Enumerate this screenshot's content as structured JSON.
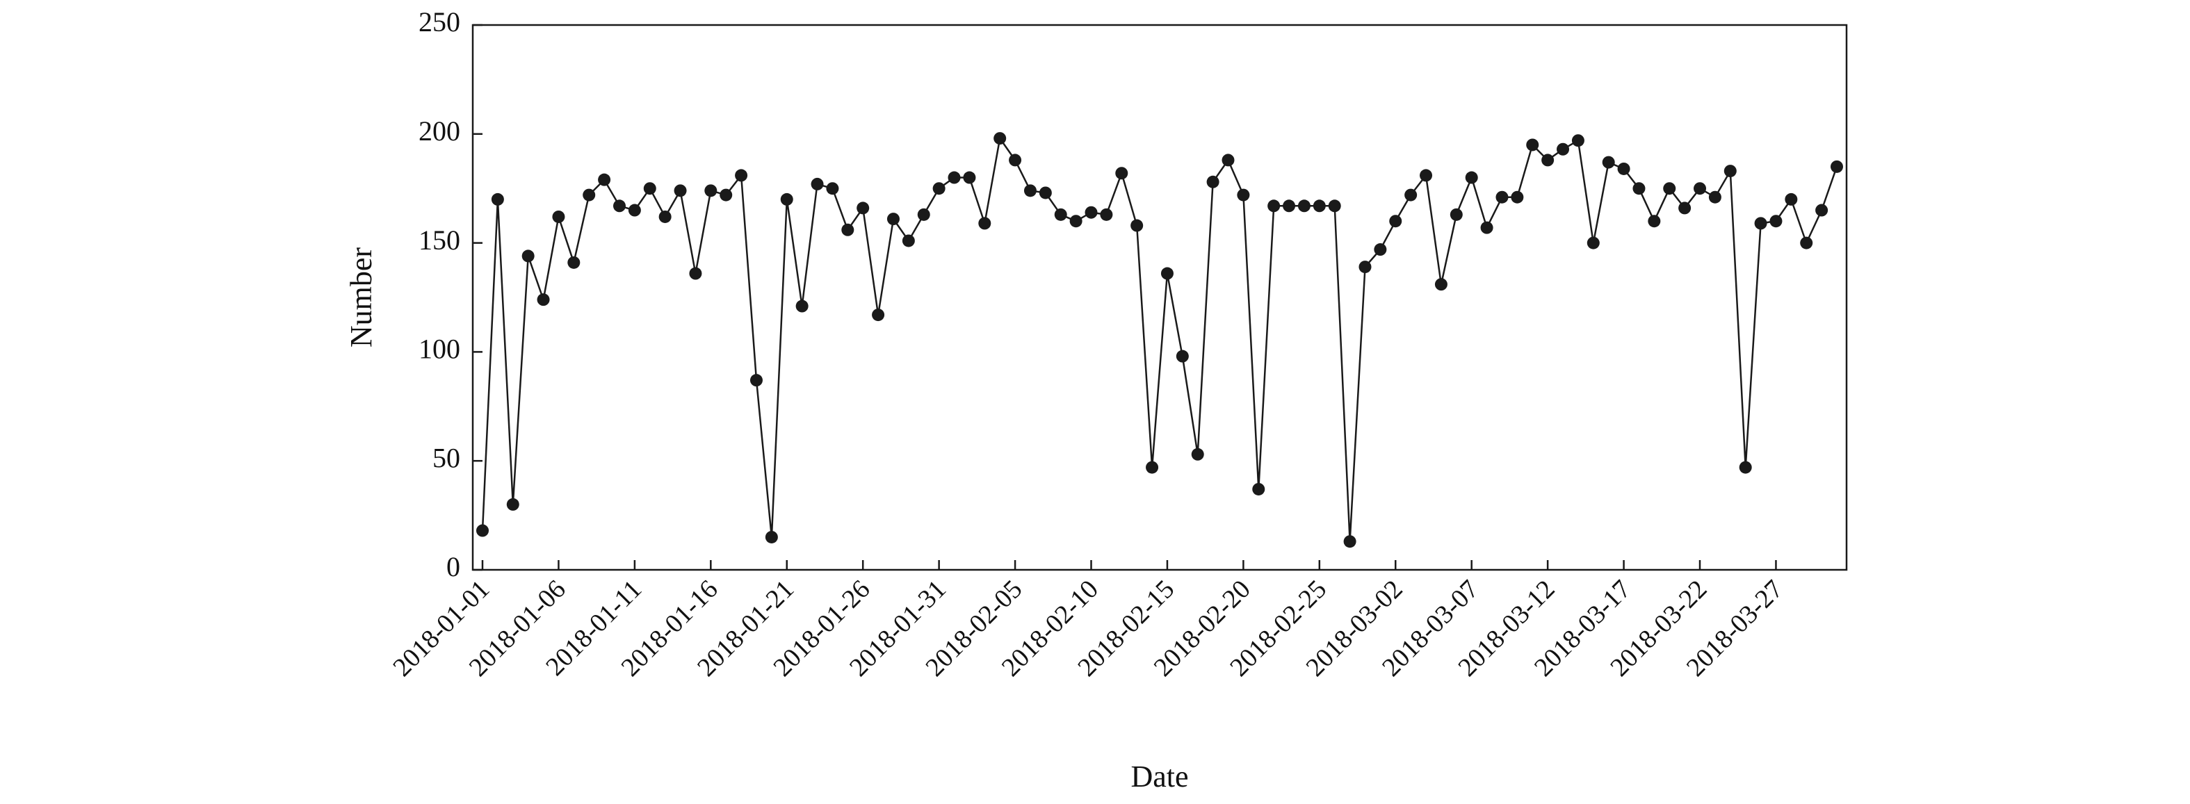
{
  "chart_data": {
    "type": "line",
    "xlabel": "Date",
    "ylabel": "Number",
    "ylim": [
      0,
      250
    ],
    "yticks": [
      0,
      50,
      100,
      150,
      200,
      250
    ],
    "xlim": [
      "2018-01-01",
      "2018-03-31"
    ],
    "xticks": [
      "2018-01-01",
      "2018-01-06",
      "2018-01-11",
      "2018-01-16",
      "2018-01-21",
      "2018-01-26",
      "2018-01-31",
      "2018-02-05",
      "2018-02-10",
      "2018-02-15",
      "2018-02-20",
      "2018-02-25",
      "2018-03-02",
      "2018-03-07",
      "2018-03-12",
      "2018-03-17",
      "2018-03-22",
      "2018-03-27"
    ],
    "grid": false,
    "series": [
      {
        "color": "#1a1a1a",
        "marker": "circle",
        "points": [
          {
            "x": "2018-01-01",
            "y": 18
          },
          {
            "x": "2018-01-02",
            "y": 170
          },
          {
            "x": "2018-01-03",
            "y": 30
          },
          {
            "x": "2018-01-04",
            "y": 144
          },
          {
            "x": "2018-01-05",
            "y": 124
          },
          {
            "x": "2018-01-06",
            "y": 162
          },
          {
            "x": "2018-01-07",
            "y": 141
          },
          {
            "x": "2018-01-08",
            "y": 172
          },
          {
            "x": "2018-01-09",
            "y": 179
          },
          {
            "x": "2018-01-10",
            "y": 167
          },
          {
            "x": "2018-01-11",
            "y": 165
          },
          {
            "x": "2018-01-12",
            "y": 175
          },
          {
            "x": "2018-01-13",
            "y": 162
          },
          {
            "x": "2018-01-14",
            "y": 174
          },
          {
            "x": "2018-01-15",
            "y": 136
          },
          {
            "x": "2018-01-16",
            "y": 174
          },
          {
            "x": "2018-01-17",
            "y": 172
          },
          {
            "x": "2018-01-18",
            "y": 181
          },
          {
            "x": "2018-01-19",
            "y": 87
          },
          {
            "x": "2018-01-20",
            "y": 15
          },
          {
            "x": "2018-01-21",
            "y": 170
          },
          {
            "x": "2018-01-22",
            "y": 121
          },
          {
            "x": "2018-01-23",
            "y": 177
          },
          {
            "x": "2018-01-24",
            "y": 175
          },
          {
            "x": "2018-01-25",
            "y": 156
          },
          {
            "x": "2018-01-26",
            "y": 166
          },
          {
            "x": "2018-01-27",
            "y": 117
          },
          {
            "x": "2018-01-28",
            "y": 161
          },
          {
            "x": "2018-01-29",
            "y": 151
          },
          {
            "x": "2018-01-30",
            "y": 163
          },
          {
            "x": "2018-01-31",
            "y": 175
          },
          {
            "x": "2018-02-01",
            "y": 180
          },
          {
            "x": "2018-02-02",
            "y": 180
          },
          {
            "x": "2018-02-03",
            "y": 159
          },
          {
            "x": "2018-02-04",
            "y": 198
          },
          {
            "x": "2018-02-05",
            "y": 188
          },
          {
            "x": "2018-02-06",
            "y": 174
          },
          {
            "x": "2018-02-07",
            "y": 173
          },
          {
            "x": "2018-02-08",
            "y": 163
          },
          {
            "x": "2018-02-09",
            "y": 160
          },
          {
            "x": "2018-02-10",
            "y": 164
          },
          {
            "x": "2018-02-11",
            "y": 163
          },
          {
            "x": "2018-02-12",
            "y": 182
          },
          {
            "x": "2018-02-13",
            "y": 158
          },
          {
            "x": "2018-02-14",
            "y": 47
          },
          {
            "x": "2018-02-15",
            "y": 136
          },
          {
            "x": "2018-02-16",
            "y": 98
          },
          {
            "x": "2018-02-17",
            "y": 53
          },
          {
            "x": "2018-02-18",
            "y": 178
          },
          {
            "x": "2018-02-19",
            "y": 188
          },
          {
            "x": "2018-02-20",
            "y": 172
          },
          {
            "x": "2018-02-21",
            "y": 37
          },
          {
            "x": "2018-02-22",
            "y": 167
          },
          {
            "x": "2018-02-23",
            "y": 167
          },
          {
            "x": "2018-02-24",
            "y": 167
          },
          {
            "x": "2018-02-25",
            "y": 167
          },
          {
            "x": "2018-02-26",
            "y": 167
          },
          {
            "x": "2018-02-27",
            "y": 13
          },
          {
            "x": "2018-02-28",
            "y": 139
          },
          {
            "x": "2018-03-01",
            "y": 147
          },
          {
            "x": "2018-03-02",
            "y": 160
          },
          {
            "x": "2018-03-03",
            "y": 172
          },
          {
            "x": "2018-03-04",
            "y": 181
          },
          {
            "x": "2018-03-05",
            "y": 131
          },
          {
            "x": "2018-03-06",
            "y": 163
          },
          {
            "x": "2018-03-07",
            "y": 180
          },
          {
            "x": "2018-03-08",
            "y": 157
          },
          {
            "x": "2018-03-09",
            "y": 171
          },
          {
            "x": "2018-03-10",
            "y": 171
          },
          {
            "x": "2018-03-11",
            "y": 195
          },
          {
            "x": "2018-03-12",
            "y": 188
          },
          {
            "x": "2018-03-13",
            "y": 193
          },
          {
            "x": "2018-03-14",
            "y": 197
          },
          {
            "x": "2018-03-15",
            "y": 150
          },
          {
            "x": "2018-03-16",
            "y": 187
          },
          {
            "x": "2018-03-17",
            "y": 184
          },
          {
            "x": "2018-03-18",
            "y": 175
          },
          {
            "x": "2018-03-19",
            "y": 160
          },
          {
            "x": "2018-03-20",
            "y": 175
          },
          {
            "x": "2018-03-21",
            "y": 166
          },
          {
            "x": "2018-03-22",
            "y": 175
          },
          {
            "x": "2018-03-23",
            "y": 171
          },
          {
            "x": "2018-03-24",
            "y": 183
          },
          {
            "x": "2018-03-25",
            "y": 47
          },
          {
            "x": "2018-03-26",
            "y": 159
          },
          {
            "x": "2018-03-27",
            "y": 160
          },
          {
            "x": "2018-03-28",
            "y": 170
          },
          {
            "x": "2018-03-29",
            "y": 150
          },
          {
            "x": "2018-03-30",
            "y": 165
          },
          {
            "x": "2018-03-31",
            "y": 185
          }
        ]
      }
    ]
  }
}
